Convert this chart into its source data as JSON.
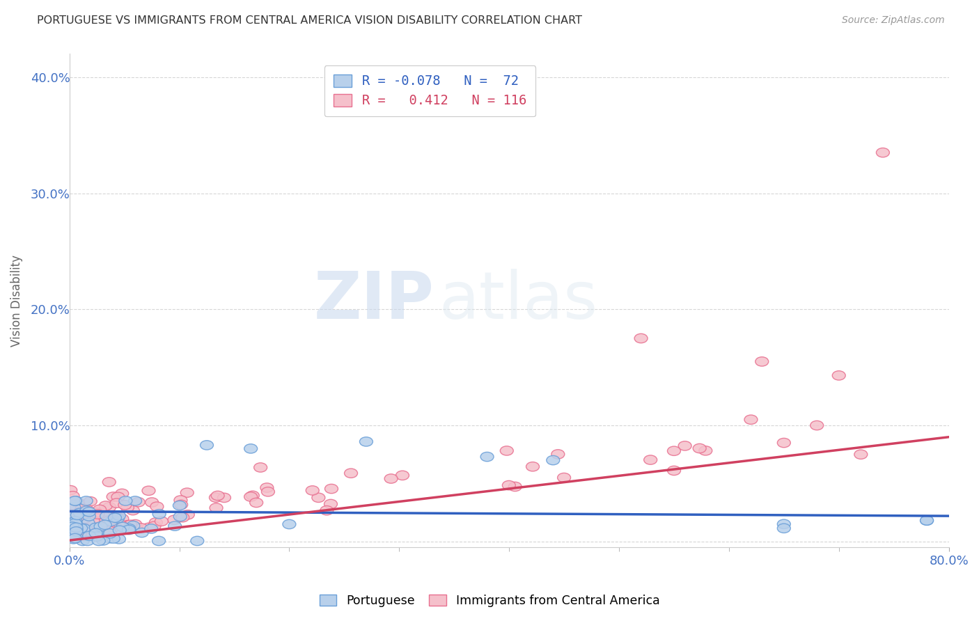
{
  "title": "PORTUGUESE VS IMMIGRANTS FROM CENTRAL AMERICA VISION DISABILITY CORRELATION CHART",
  "source": "Source: ZipAtlas.com",
  "ylabel": "Vision Disability",
  "xlim": [
    0.0,
    0.8
  ],
  "ylim": [
    -0.005,
    0.42
  ],
  "yticks": [
    0.0,
    0.1,
    0.2,
    0.3,
    0.4
  ],
  "ytick_labels": [
    "",
    "10.0%",
    "20.0%",
    "30.0%",
    "40.0%"
  ],
  "background_color": "#ffffff",
  "legend_r1": "R = -0.078   N =  72",
  "legend_r2": "R =   0.412   N = 116",
  "series1_face": "#b8d0eb",
  "series1_edge": "#6a9fd8",
  "series2_face": "#f5c0cb",
  "series2_edge": "#e87090",
  "trendline1_color": "#3060c0",
  "trendline2_color": "#d04060",
  "trendline1_y0": 0.026,
  "trendline1_y1": 0.022,
  "trendline2_y0": 0.001,
  "trendline2_y1": 0.09
}
